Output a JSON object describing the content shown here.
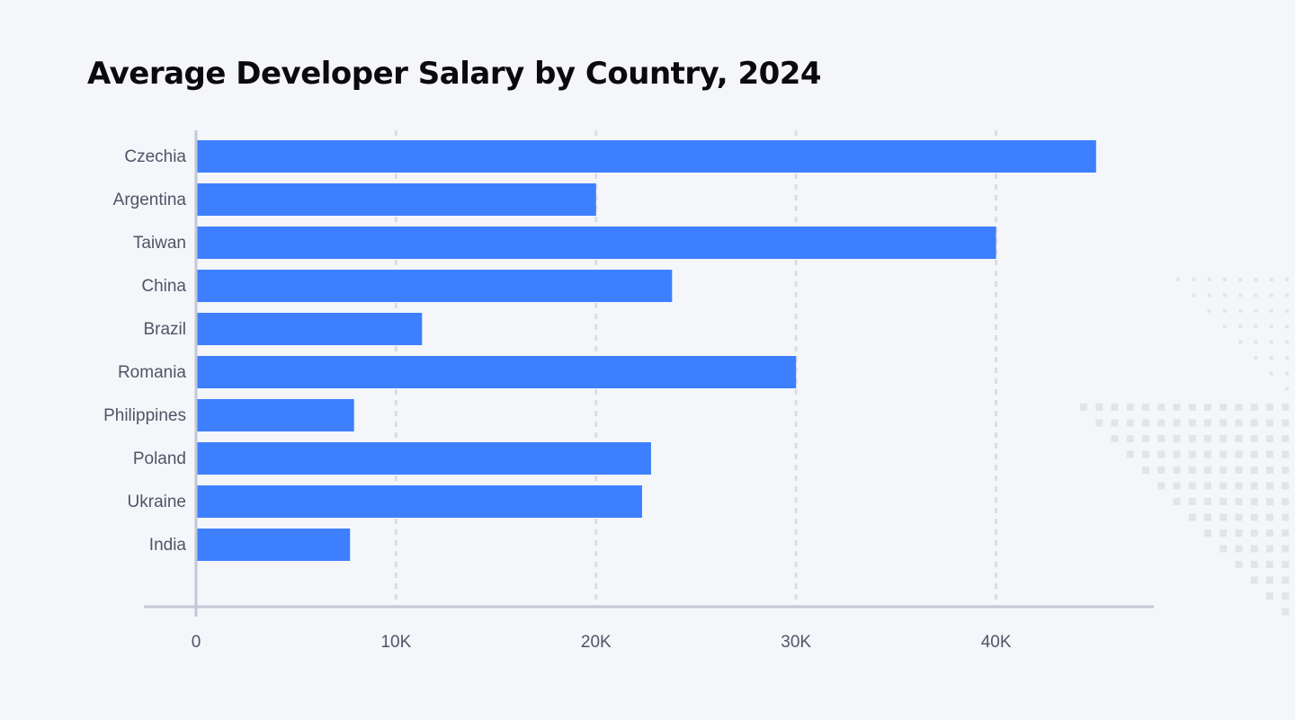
{
  "chart_data": {
    "type": "bar",
    "orientation": "horizontal",
    "title": "Average Developer Salary by Country, 2024",
    "xlabel": "",
    "ylabel": "",
    "categories": [
      "Czechia",
      "Argentina",
      "Taiwan",
      "China",
      "Brazil",
      "Romania",
      "Philippines",
      "Poland",
      "Ukraine",
      "India"
    ],
    "values": [
      45000,
      20000,
      40000,
      23800,
      11300,
      30000,
      7900,
      22750,
      22300,
      7700
    ],
    "xlim": [
      0,
      47000
    ],
    "xticks": [
      0,
      10000,
      20000,
      30000,
      40000
    ],
    "xtick_labels": [
      "0",
      "10K",
      "20K",
      "30K",
      "40K"
    ],
    "grid": "vertical dashed",
    "legend": "none",
    "colors": {
      "bar": "#3d7fff",
      "grid": "#dcdde3",
      "axis": "#c3c8d6",
      "background": "#f5f6fa",
      "decoration": "#e3e4ea"
    }
  }
}
